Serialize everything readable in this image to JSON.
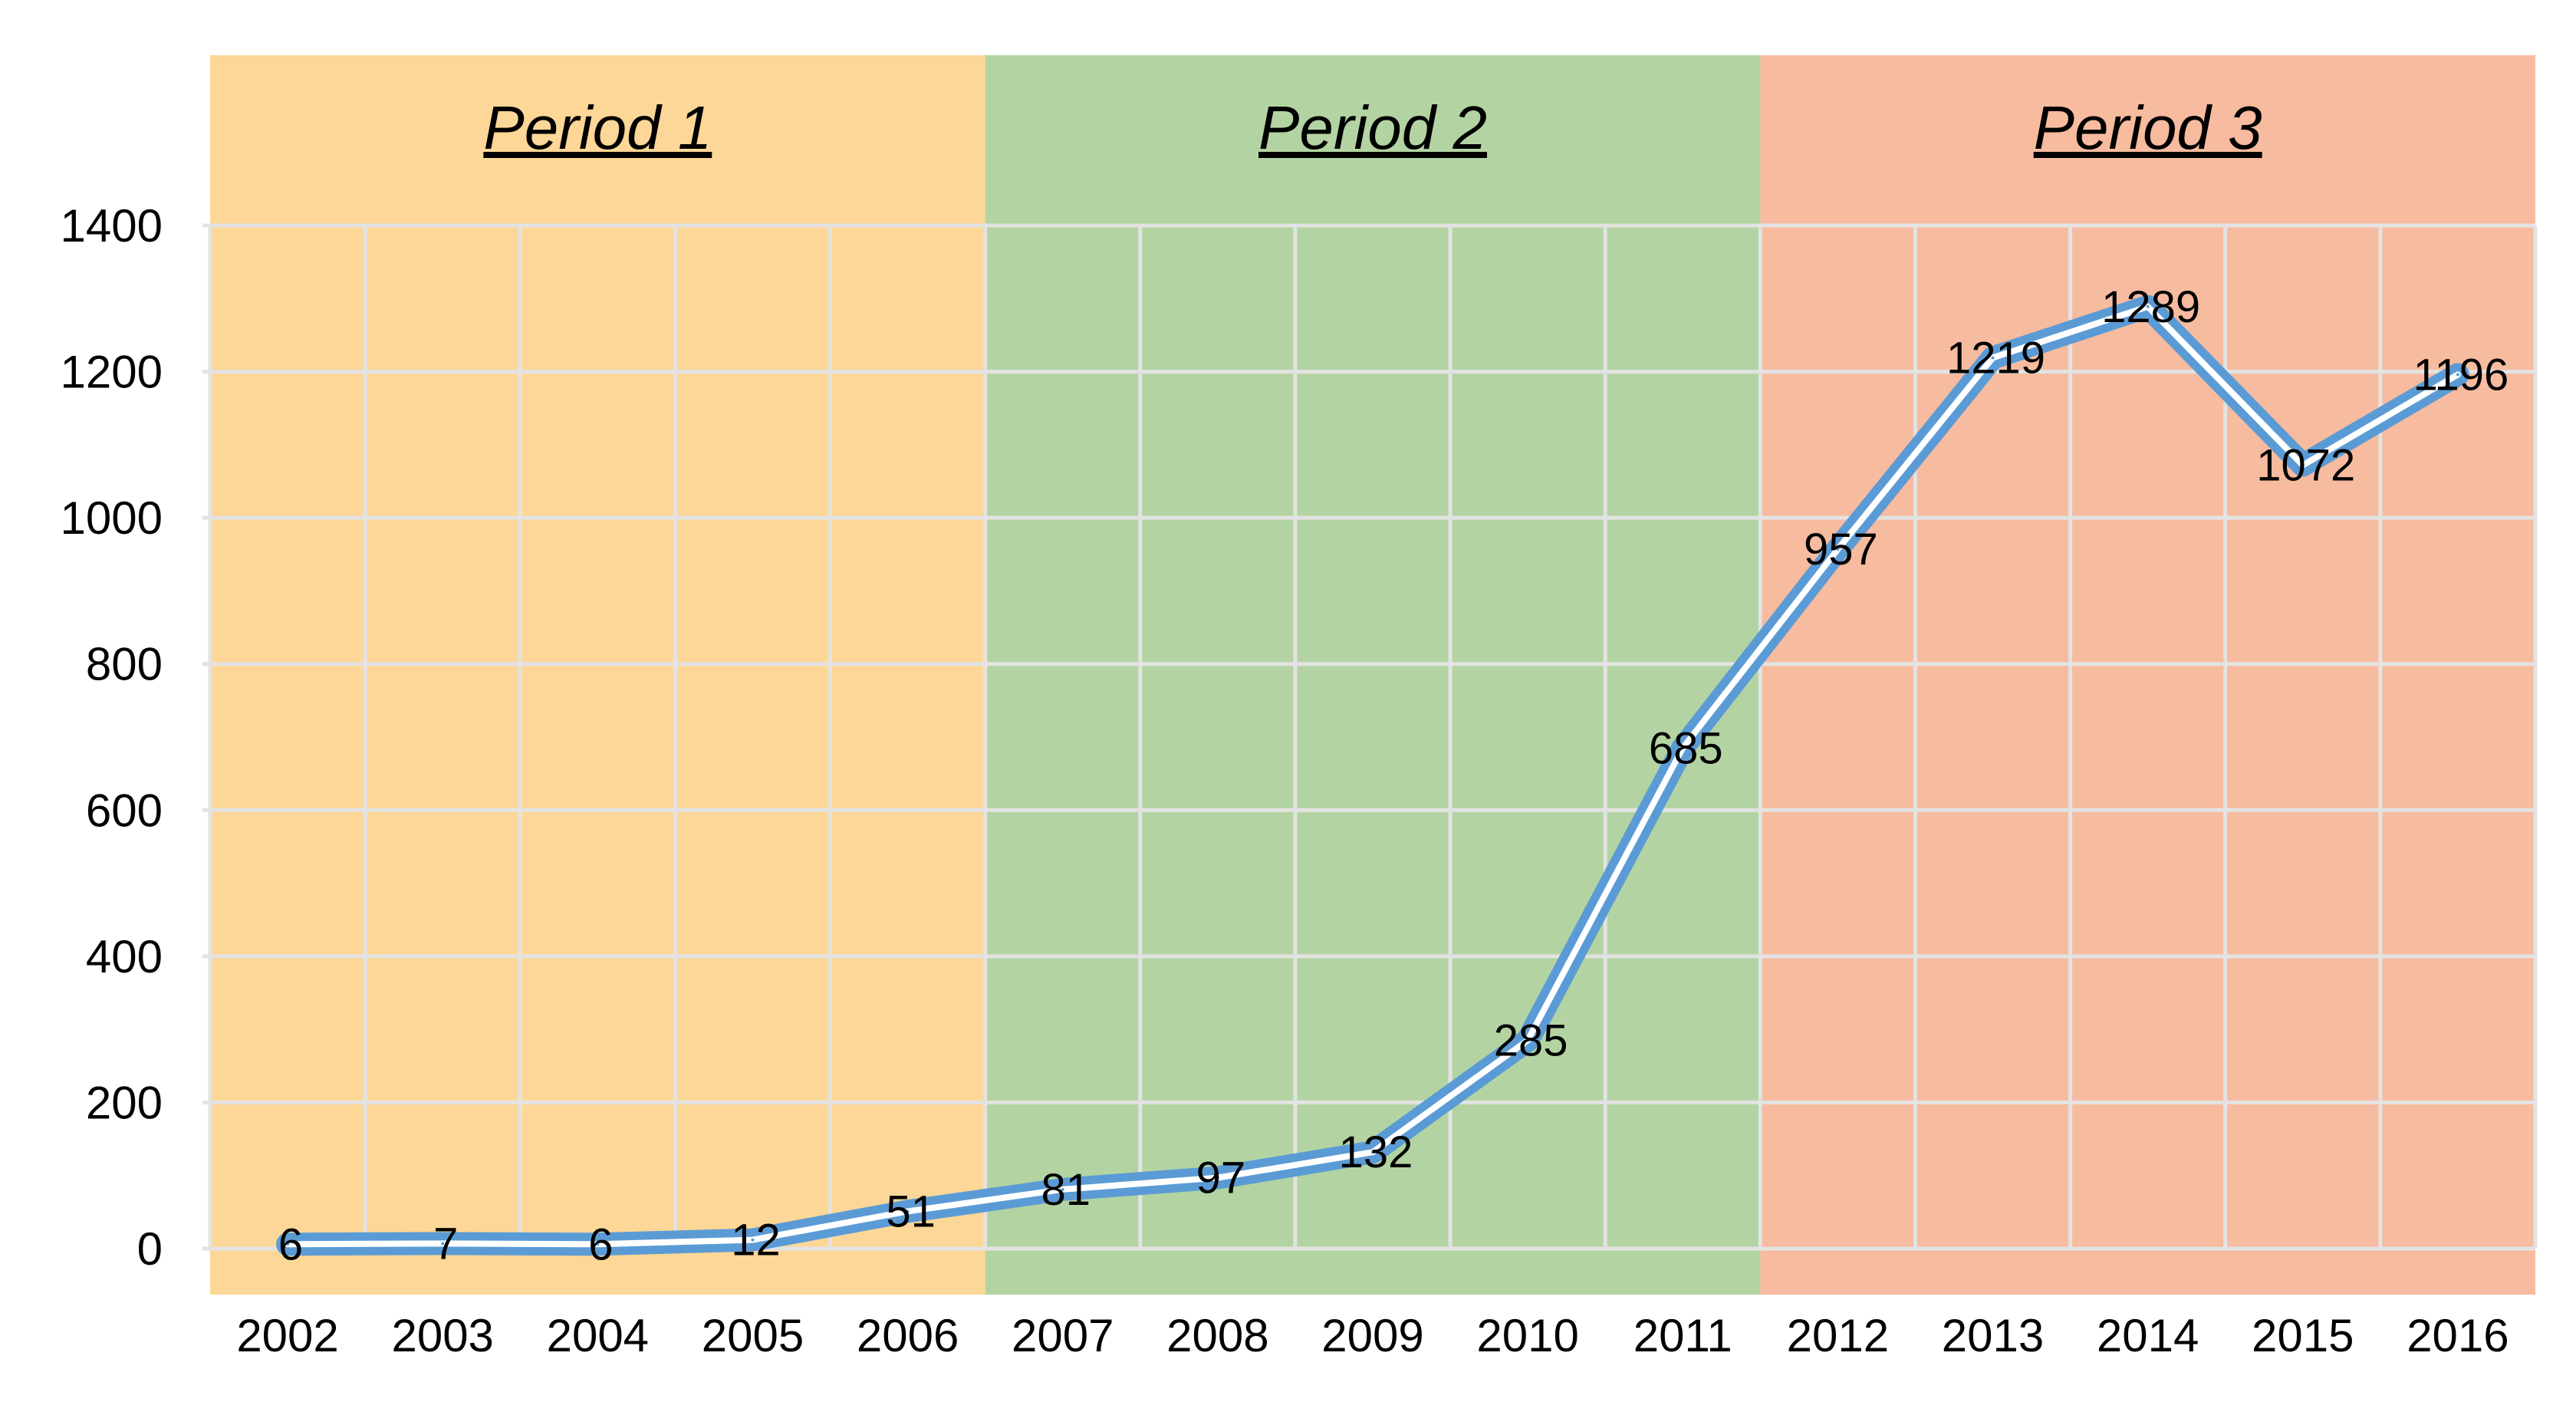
{
  "chart_data": {
    "type": "line",
    "title": "",
    "xlabel": "",
    "ylabel": "",
    "ylim": [
      0,
      1400
    ],
    "yticks": [
      0,
      200,
      400,
      600,
      800,
      1000,
      1200,
      1400
    ],
    "grid": true,
    "categories": [
      "2002",
      "2003",
      "2004",
      "2005",
      "2006",
      "2007",
      "2008",
      "2009",
      "2010",
      "2011",
      "2012",
      "2013",
      "2014",
      "2015",
      "2016"
    ],
    "series": [
      {
        "name": "",
        "values": [
          6,
          7,
          6,
          12,
          51,
          81,
          97,
          132,
          285,
          685,
          957,
          1219,
          1289,
          1072,
          1196
        ],
        "data_labels": [
          "6",
          "7",
          "6",
          "12",
          "51",
          "81",
          "97",
          "132",
          "285",
          "685",
          "957",
          "1219",
          "1289",
          "1072",
          "1196"
        ],
        "color": "#5b9bd5"
      }
    ],
    "periods": [
      {
        "label": "Period 1",
        "from": "2002",
        "to": "2006",
        "color": "#fcd797"
      },
      {
        "label": "Period 2",
        "from": "2007",
        "to": "2011",
        "color": "#b3d4a2"
      },
      {
        "label": "Period 3",
        "from": "2012",
        "to": "2016",
        "color": "#f7bb9f"
      }
    ]
  }
}
